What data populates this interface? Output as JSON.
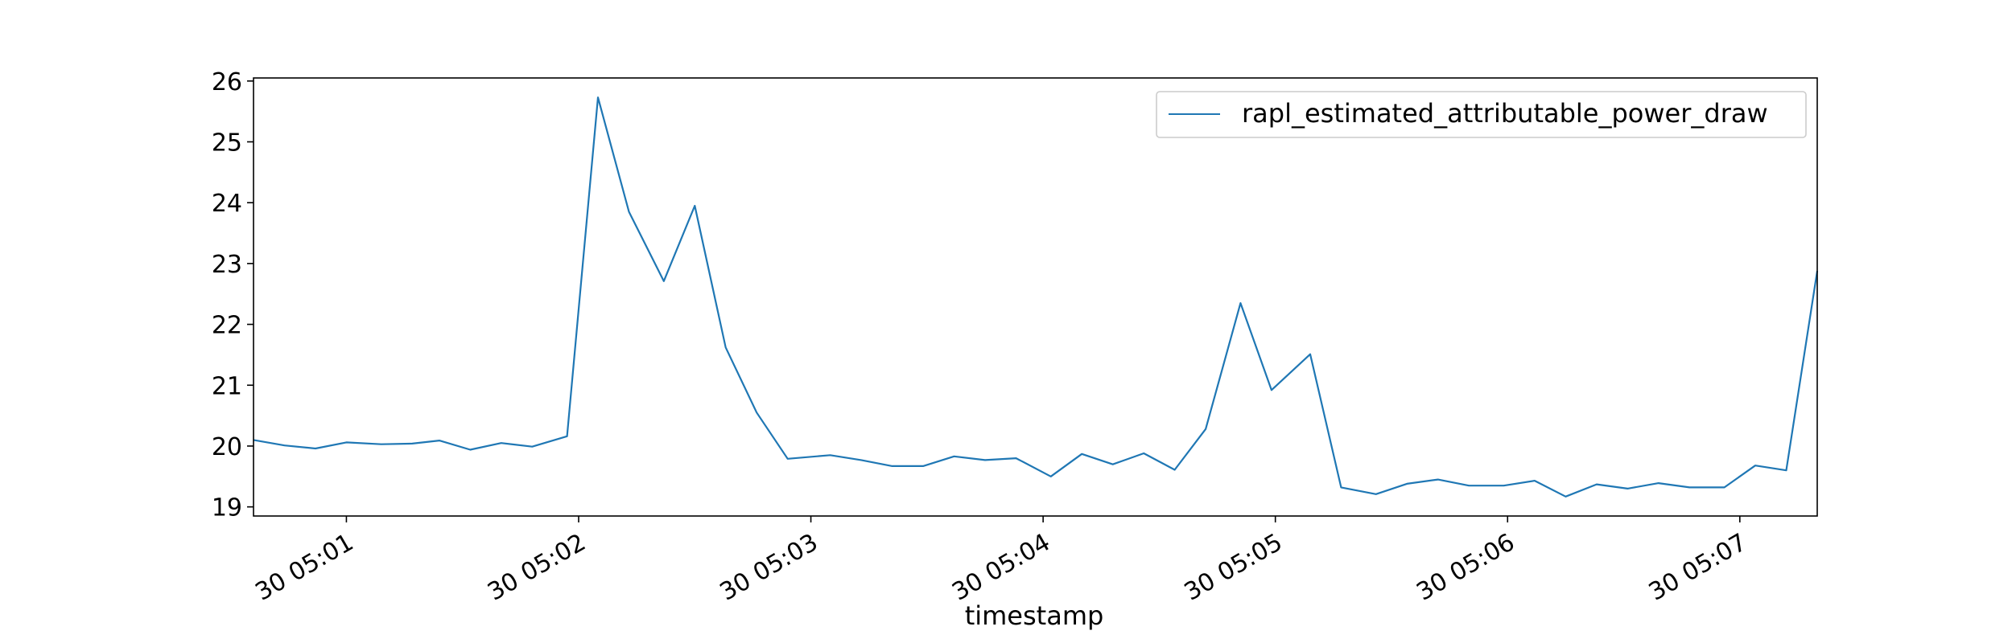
{
  "chart_data": {
    "type": "line",
    "title": "",
    "xlabel": "timestamp",
    "ylabel": "",
    "x_ticks": [
      "30 05:01",
      "30 05:02",
      "30 05:03",
      "30 05:04",
      "30 05:05",
      "30 05:06",
      "30 05:07"
    ],
    "y_ticks": [
      19,
      20,
      21,
      22,
      23,
      24,
      25,
      26
    ],
    "xlim": [
      "05:00:36",
      "05:07:20"
    ],
    "ylim": [
      18.85,
      26.05
    ],
    "grid": false,
    "legend_position": "top-right",
    "series": [
      {
        "name": "rapl_estimated_attributable_power_draw",
        "color": "#1f77b4",
        "points": [
          [
            "05:00:36",
            20.1
          ],
          [
            "05:00:44",
            20.01
          ],
          [
            "05:00:52",
            19.96
          ],
          [
            "05:01:00",
            20.06
          ],
          [
            "05:01:09",
            20.03
          ],
          [
            "05:01:17",
            20.04
          ],
          [
            "05:01:24",
            20.09
          ],
          [
            "05:01:32",
            19.94
          ],
          [
            "05:01:40",
            20.05
          ],
          [
            "05:01:48",
            19.99
          ],
          [
            "05:01:57",
            20.16
          ],
          [
            "05:02:05",
            25.73
          ],
          [
            "05:02:13",
            23.85
          ],
          [
            "05:02:22",
            22.71
          ],
          [
            "05:02:30",
            23.95
          ],
          [
            "05:02:38",
            21.62
          ],
          [
            "05:02:46",
            20.55
          ],
          [
            "05:02:54",
            19.79
          ],
          [
            "05:03:05",
            19.85
          ],
          [
            "05:03:13",
            19.77
          ],
          [
            "05:03:21",
            19.67
          ],
          [
            "05:03:29",
            19.67
          ],
          [
            "05:03:37",
            19.83
          ],
          [
            "05:03:45",
            19.77
          ],
          [
            "05:03:53",
            19.8
          ],
          [
            "05:04:02",
            19.5
          ],
          [
            "05:04:10",
            19.87
          ],
          [
            "05:04:18",
            19.7
          ],
          [
            "05:04:26",
            19.88
          ],
          [
            "05:04:34",
            19.61
          ],
          [
            "05:04:42",
            20.28
          ],
          [
            "05:04:51",
            22.35
          ],
          [
            "05:04:59",
            20.92
          ],
          [
            "05:05:09",
            21.51
          ],
          [
            "05:05:17",
            19.32
          ],
          [
            "05:05:26",
            19.21
          ],
          [
            "05:05:34",
            19.38
          ],
          [
            "05:05:42",
            19.45
          ],
          [
            "05:05:50",
            19.35
          ],
          [
            "05:05:59",
            19.35
          ],
          [
            "05:06:07",
            19.43
          ],
          [
            "05:06:15",
            19.17
          ],
          [
            "05:06:23",
            19.37
          ],
          [
            "05:06:31",
            19.3
          ],
          [
            "05:06:39",
            19.39
          ],
          [
            "05:06:47",
            19.32
          ],
          [
            "05:06:56",
            19.32
          ],
          [
            "05:07:04",
            19.68
          ],
          [
            "05:07:12",
            19.6
          ],
          [
            "05:07:20",
            22.88
          ]
        ]
      }
    ]
  }
}
